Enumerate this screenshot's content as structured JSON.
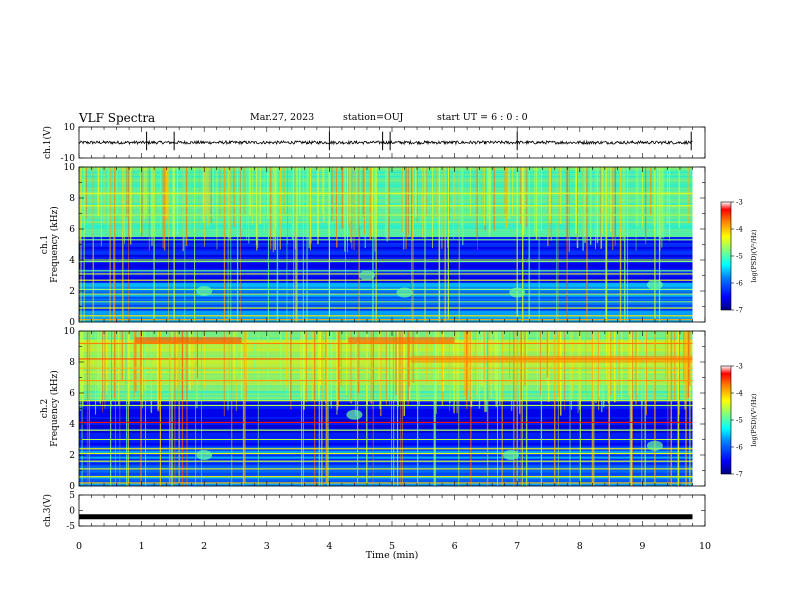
{
  "header": {
    "title": "VLF Spectra",
    "date": "Mar.27, 2023",
    "station": "station=OUJ",
    "start_ut": "start UT =  6 : 0 : 0"
  },
  "chart_data": [
    {
      "type": "line",
      "panel": "ch1_waveform",
      "ylabel": "ch.1(V)",
      "ylim": [
        -10,
        10
      ],
      "yticks": [
        10,
        -10
      ],
      "xlim": [
        0,
        10
      ],
      "baseline": 0,
      "description_values": {
        "noise_amplitude": 1,
        "spike_times_min": [
          1.08,
          1.52,
          4.0,
          4.85,
          4.97,
          7.0,
          9.78
        ]
      }
    },
    {
      "type": "heatmap",
      "panel": "ch1_spectrogram",
      "ylabel": "ch.1\nFrequency (kHz)",
      "ylabel_top": "ch.1",
      "ylabel_bottom": "Frequency (kHz)",
      "ylim": [
        0,
        10
      ],
      "yticks": [
        0,
        2,
        4,
        6,
        8,
        10
      ],
      "xlim": [
        0,
        9.8
      ],
      "colorbar": {
        "label": "log(PSD)(V²/Hz)",
        "ticks": [
          -3,
          -4,
          -5,
          -6,
          -7
        ],
        "range": [
          -7,
          -3
        ]
      }
    },
    {
      "type": "heatmap",
      "panel": "ch2_spectrogram",
      "ylabel_top": "ch.2",
      "ylabel_bottom": "Frequency (kHz)",
      "ylim": [
        0,
        10
      ],
      "yticks": [
        0,
        2,
        4,
        6,
        8,
        10
      ],
      "xlim": [
        0,
        9.8
      ],
      "colorbar": {
        "label": "log(PSD)(V²/Hz)",
        "ticks": [
          -3,
          -4,
          -5,
          -6,
          -7
        ],
        "range": [
          -7,
          -3
        ]
      }
    },
    {
      "type": "line",
      "panel": "ch3_waveform",
      "ylabel": "ch.3(V)",
      "ylim": [
        -5,
        5
      ],
      "yticks": [
        5,
        0,
        -5
      ],
      "xlim": [
        0,
        10
      ],
      "baseline": -2
    }
  ],
  "xaxis": {
    "label": "Time (min)",
    "ticks": [
      "0",
      "1",
      "2",
      "3",
      "4",
      "5",
      "6",
      "7",
      "8",
      "9",
      "10"
    ],
    "range": [
      0,
      10
    ]
  },
  "colormap": [
    "#000080",
    "#0000ff",
    "#0080ff",
    "#00ffff",
    "#80ff80",
    "#ffff00",
    "#ff8000",
    "#ff0000",
    "#ffffff"
  ]
}
